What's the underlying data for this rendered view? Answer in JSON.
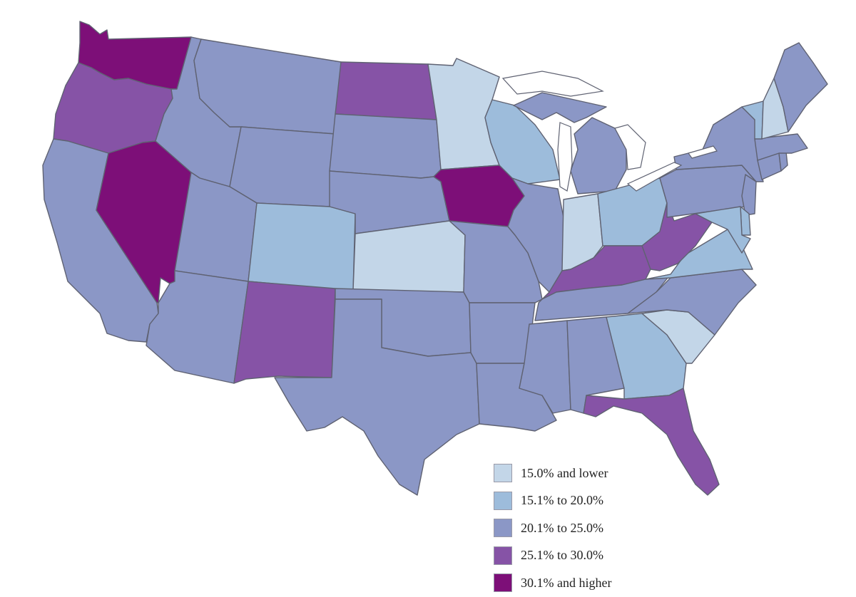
{
  "colors": {
    "c1": "#c3d6e8",
    "c2": "#9dbcdb",
    "c3": "#8b97c6",
    "c4": "#8653a6",
    "c5": "#7d0f78",
    "border": "#5f6272",
    "lake": "#ffffff"
  },
  "legend": {
    "items": [
      {
        "label": "15.0% and lower",
        "color": "#c3d6e8"
      },
      {
        "label": "15.1% to 20.0%",
        "color": "#9dbcdb"
      },
      {
        "label": "20.1% to 25.0%",
        "color": "#8b97c6"
      },
      {
        "label": "25.1% to 30.0%",
        "color": "#8653a6"
      },
      {
        "label": "30.1% and higher",
        "color": "#7d0f78"
      }
    ]
  },
  "states": [
    {
      "code": "WA",
      "bin": 5
    },
    {
      "code": "OR",
      "bin": 4
    },
    {
      "code": "CA",
      "bin": 3
    },
    {
      "code": "NV",
      "bin": 5
    },
    {
      "code": "ID",
      "bin": 3
    },
    {
      "code": "MT",
      "bin": 3
    },
    {
      "code": "WY",
      "bin": 3
    },
    {
      "code": "UT",
      "bin": 3
    },
    {
      "code": "AZ",
      "bin": 3
    },
    {
      "code": "CO",
      "bin": 2
    },
    {
      "code": "NM",
      "bin": 4
    },
    {
      "code": "ND",
      "bin": 4
    },
    {
      "code": "SD",
      "bin": 3
    },
    {
      "code": "NE",
      "bin": 3
    },
    {
      "code": "KS",
      "bin": 1
    },
    {
      "code": "OK",
      "bin": 3
    },
    {
      "code": "TX",
      "bin": 3
    },
    {
      "code": "MN",
      "bin": 1
    },
    {
      "code": "IA",
      "bin": 5
    },
    {
      "code": "MO",
      "bin": 3
    },
    {
      "code": "AR",
      "bin": 3
    },
    {
      "code": "LA",
      "bin": 3
    },
    {
      "code": "WI",
      "bin": 2
    },
    {
      "code": "IL",
      "bin": 3
    },
    {
      "code": "MI",
      "bin": 3
    },
    {
      "code": "IN",
      "bin": 1
    },
    {
      "code": "OH",
      "bin": 2
    },
    {
      "code": "KY",
      "bin": 4
    },
    {
      "code": "TN",
      "bin": 3
    },
    {
      "code": "MS",
      "bin": 3
    },
    {
      "code": "AL",
      "bin": 3
    },
    {
      "code": "GA",
      "bin": 2
    },
    {
      "code": "FL",
      "bin": 4
    },
    {
      "code": "SC",
      "bin": 1
    },
    {
      "code": "NC",
      "bin": 3
    },
    {
      "code": "VA",
      "bin": 2
    },
    {
      "code": "WV",
      "bin": 4
    },
    {
      "code": "PA",
      "bin": 3
    },
    {
      "code": "NY",
      "bin": 3
    },
    {
      "code": "NJ",
      "bin": 3
    },
    {
      "code": "DE",
      "bin": 2
    },
    {
      "code": "MD",
      "bin": 2
    },
    {
      "code": "CT",
      "bin": 3
    },
    {
      "code": "RI",
      "bin": 3
    },
    {
      "code": "MA",
      "bin": 3
    },
    {
      "code": "VT",
      "bin": 2
    },
    {
      "code": "NH",
      "bin": 1
    },
    {
      "code": "ME",
      "bin": 3
    }
  ]
}
